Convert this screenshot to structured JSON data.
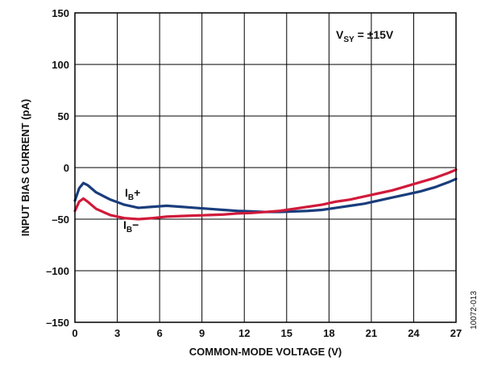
{
  "chart_data": {
    "type": "line",
    "title": "",
    "xlabel": "COMMON-MODE VOLTAGE (V)",
    "ylabel": "INPUT BIAS CURRENT (pA)",
    "xlim": [
      0,
      27
    ],
    "ylim": [
      -150,
      150
    ],
    "xticks": [
      "0",
      "3",
      "6",
      "9",
      "12",
      "15",
      "18",
      "21",
      "24",
      "27"
    ],
    "yticks": [
      "150",
      "100",
      "50",
      "0",
      "–50",
      "–100",
      "–150"
    ],
    "grid": true,
    "legend": "none",
    "annotation": {
      "main": "V",
      "sub": "SY",
      "rest": " = ±15V"
    },
    "figure_id": "10072-013",
    "series": [
      {
        "name": "IB+",
        "label_main": "I",
        "label_sub": "B",
        "label_suffix": "+",
        "color": "#1a3d7c",
        "x": [
          0,
          0.3,
          0.6,
          0.9,
          1.5,
          2.5,
          3.5,
          4.5,
          5.5,
          6.5,
          7.5,
          8.5,
          9.5,
          10.5,
          11.5,
          12.5,
          13.5,
          14.5,
          15.5,
          16.5,
          17.5,
          18.5,
          19.5,
          20.5,
          21.5,
          22.5,
          23.5,
          24.5,
          25.5,
          26.5,
          27
        ],
        "y": [
          -32,
          -20,
          -15,
          -17,
          -24,
          -31,
          -36,
          -39,
          -38,
          -37,
          -38,
          -39,
          -40,
          -41,
          -42,
          -42.5,
          -43,
          -43,
          -42.5,
          -42,
          -41,
          -39,
          -37,
          -35,
          -32,
          -29,
          -26,
          -23,
          -19,
          -14,
          -11
        ]
      },
      {
        "name": "IB−",
        "label_main": "I",
        "label_sub": "B",
        "label_suffix": "−",
        "color": "#d11a3a",
        "x": [
          0,
          0.3,
          0.6,
          0.9,
          1.5,
          2.5,
          3.5,
          4.5,
          5.5,
          6.5,
          7.5,
          8.5,
          9.5,
          10.5,
          11.5,
          12.5,
          13.5,
          14.5,
          15.5,
          16.5,
          17.5,
          18.5,
          19.5,
          20.5,
          21.5,
          22.5,
          23.5,
          24.5,
          25.5,
          26.5,
          27
        ],
        "y": [
          -42,
          -33,
          -30,
          -33,
          -40,
          -46,
          -49,
          -50,
          -49,
          -47.5,
          -47,
          -46.5,
          -46,
          -45.5,
          -44.5,
          -44,
          -43,
          -42,
          -40,
          -38,
          -36,
          -33,
          -31,
          -28,
          -25,
          -22,
          -18,
          -14,
          -10,
          -5,
          -2
        ]
      }
    ]
  }
}
